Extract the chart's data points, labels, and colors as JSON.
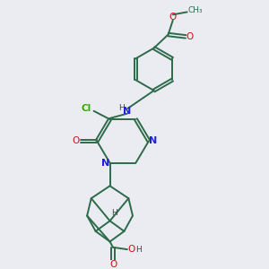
{
  "bg_color": "#eaecf2",
  "bond_color": "#2d6b4a",
  "n_color": "#2020dd",
  "o_color": "#cc1111",
  "cl_color": "#33aa00",
  "h_color": "#444444",
  "lw": 1.4,
  "figsize": [
    3.0,
    3.0
  ],
  "dpi": 100,
  "xlim": [
    0,
    10
  ],
  "ylim": [
    0,
    10
  ]
}
